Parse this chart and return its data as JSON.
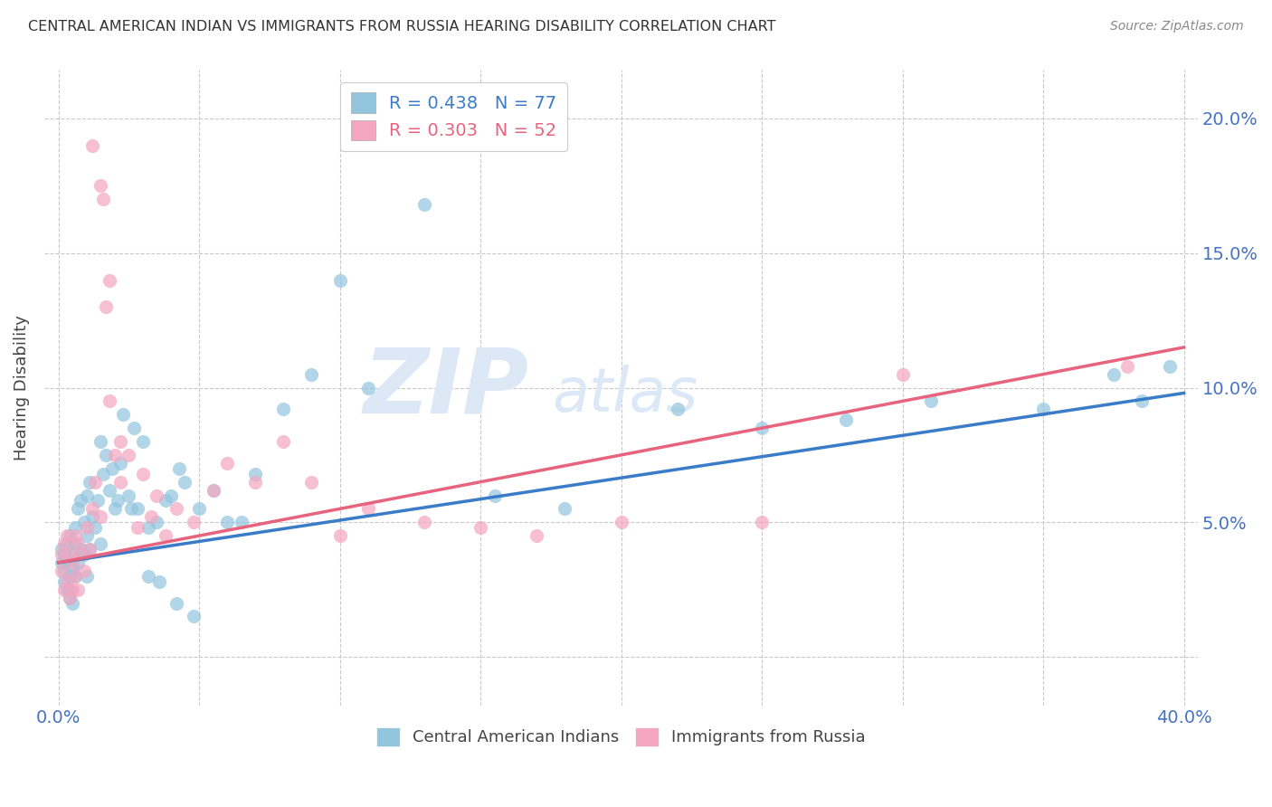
{
  "title": "CENTRAL AMERICAN INDIAN VS IMMIGRANTS FROM RUSSIA HEARING DISABILITY CORRELATION CHART",
  "source": "Source: ZipAtlas.com",
  "ylabel": "Hearing Disability",
  "y_ticks": [
    0.0,
    0.05,
    0.1,
    0.15,
    0.2
  ],
  "y_tick_labels": [
    "",
    "5.0%",
    "10.0%",
    "15.0%",
    "20.0%"
  ],
  "x_ticks": [
    0.0,
    0.05,
    0.1,
    0.15,
    0.2,
    0.25,
    0.3,
    0.35,
    0.4
  ],
  "xlim": [
    -0.005,
    0.405
  ],
  "ylim": [
    -0.018,
    0.218
  ],
  "blue_R": 0.438,
  "blue_N": 77,
  "pink_R": 0.303,
  "pink_N": 52,
  "blue_color": "#92c5de",
  "pink_color": "#f4a6c0",
  "blue_line_color": "#3b7cc9",
  "pink_line_color": "#e8637e",
  "watermark_color": "#dce8f5",
  "blue_scatter_x": [
    0.001,
    0.001,
    0.002,
    0.002,
    0.002,
    0.003,
    0.003,
    0.003,
    0.004,
    0.004,
    0.004,
    0.004,
    0.005,
    0.005,
    0.005,
    0.006,
    0.006,
    0.006,
    0.007,
    0.007,
    0.008,
    0.008,
    0.009,
    0.009,
    0.01,
    0.01,
    0.01,
    0.011,
    0.011,
    0.012,
    0.013,
    0.014,
    0.015,
    0.015,
    0.016,
    0.017,
    0.018,
    0.019,
    0.02,
    0.021,
    0.022,
    0.023,
    0.025,
    0.026,
    0.027,
    0.028,
    0.03,
    0.032,
    0.035,
    0.038,
    0.04,
    0.043,
    0.045,
    0.05,
    0.055,
    0.06,
    0.065,
    0.07,
    0.08,
    0.09,
    0.1,
    0.11,
    0.13,
    0.155,
    0.18,
    0.22,
    0.25,
    0.28,
    0.31,
    0.35,
    0.375,
    0.385,
    0.395,
    0.032,
    0.036,
    0.042,
    0.048
  ],
  "blue_scatter_y": [
    0.04,
    0.035,
    0.038,
    0.032,
    0.028,
    0.042,
    0.036,
    0.025,
    0.045,
    0.03,
    0.025,
    0.022,
    0.038,
    0.033,
    0.02,
    0.048,
    0.042,
    0.03,
    0.055,
    0.035,
    0.058,
    0.04,
    0.05,
    0.038,
    0.06,
    0.045,
    0.03,
    0.065,
    0.04,
    0.052,
    0.048,
    0.058,
    0.08,
    0.042,
    0.068,
    0.075,
    0.062,
    0.07,
    0.055,
    0.058,
    0.072,
    0.09,
    0.06,
    0.055,
    0.085,
    0.055,
    0.08,
    0.048,
    0.05,
    0.058,
    0.06,
    0.07,
    0.065,
    0.055,
    0.062,
    0.05,
    0.05,
    0.068,
    0.092,
    0.105,
    0.14,
    0.1,
    0.168,
    0.06,
    0.055,
    0.092,
    0.085,
    0.088,
    0.095,
    0.092,
    0.105,
    0.095,
    0.108,
    0.03,
    0.028,
    0.02,
    0.015
  ],
  "pink_scatter_x": [
    0.001,
    0.001,
    0.002,
    0.002,
    0.003,
    0.003,
    0.004,
    0.004,
    0.005,
    0.005,
    0.006,
    0.006,
    0.007,
    0.007,
    0.008,
    0.009,
    0.01,
    0.011,
    0.012,
    0.013,
    0.015,
    0.016,
    0.017,
    0.018,
    0.02,
    0.022,
    0.025,
    0.028,
    0.03,
    0.033,
    0.035,
    0.038,
    0.042,
    0.048,
    0.055,
    0.06,
    0.07,
    0.08,
    0.09,
    0.1,
    0.11,
    0.13,
    0.15,
    0.17,
    0.2,
    0.25,
    0.3,
    0.38,
    0.012,
    0.015,
    0.018,
    0.022
  ],
  "pink_scatter_y": [
    0.038,
    0.032,
    0.042,
    0.025,
    0.045,
    0.028,
    0.038,
    0.022,
    0.035,
    0.025,
    0.045,
    0.03,
    0.042,
    0.025,
    0.038,
    0.032,
    0.048,
    0.04,
    0.055,
    0.065,
    0.052,
    0.17,
    0.13,
    0.095,
    0.075,
    0.065,
    0.075,
    0.048,
    0.068,
    0.052,
    0.06,
    0.045,
    0.055,
    0.05,
    0.062,
    0.072,
    0.065,
    0.08,
    0.065,
    0.045,
    0.055,
    0.05,
    0.048,
    0.045,
    0.05,
    0.05,
    0.105,
    0.108,
    0.19,
    0.175,
    0.14,
    0.08
  ],
  "blue_line_x0": 0.0,
  "blue_line_y0": 0.035,
  "blue_line_x1": 0.4,
  "blue_line_y1": 0.098,
  "pink_line_x0": 0.0,
  "pink_line_y0": 0.035,
  "pink_line_x1": 0.4,
  "pink_line_y1": 0.115
}
